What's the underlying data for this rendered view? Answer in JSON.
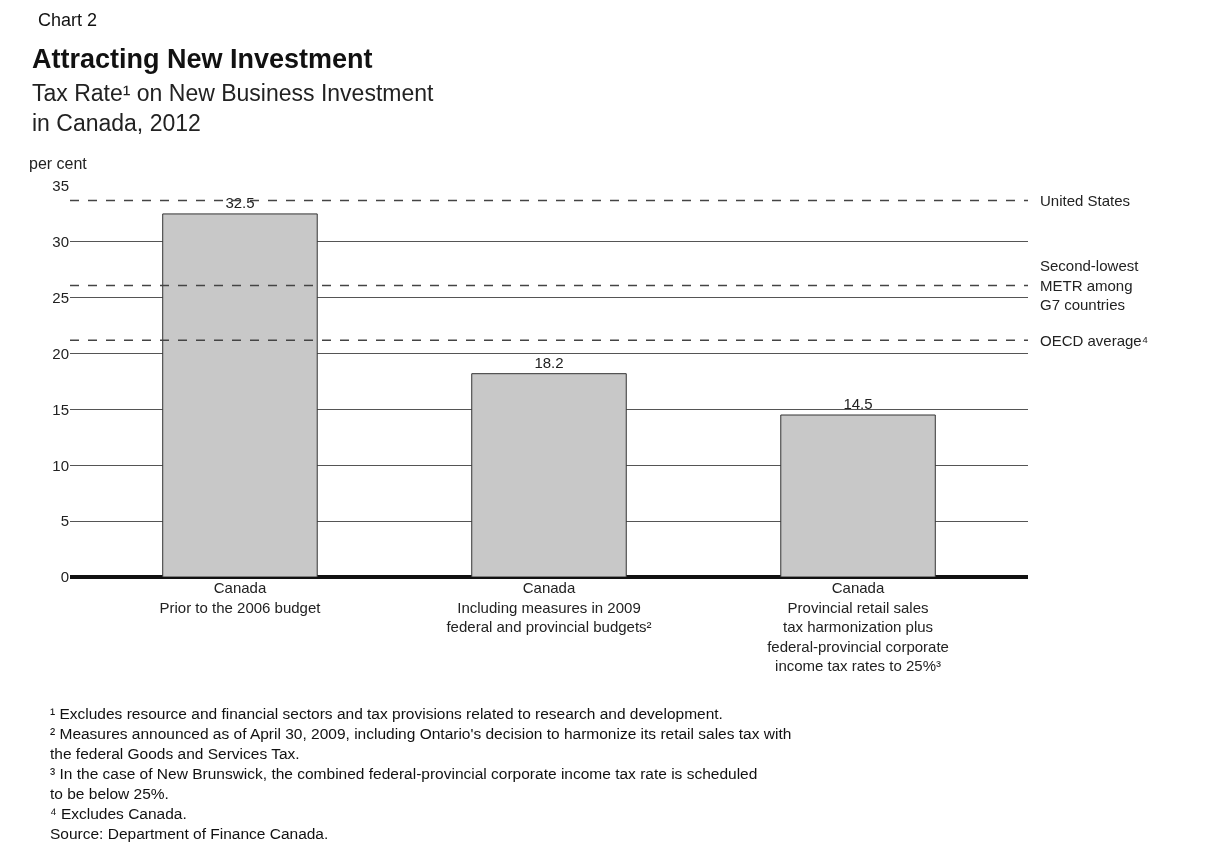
{
  "chart_data": {
    "type": "bar",
    "title": "Attracting New Investment",
    "subtitle": "Tax Rate¹ on New Business Investment\nin Canada, 2012",
    "ylabel": "per cent",
    "categories": [
      "Canada\nPrior to the 2006 budget",
      "Canada\nIncluding measures in 2009\nfederal and provincial budgets²",
      "Canada\nProvincial retail sales\ntax harmonization plus\nfederal-provincial corporate\nincome tax rates to 25%³"
    ],
    "values": [
      32.5,
      18.2,
      14.5
    ],
    "color": "#c8c8c8",
    "data_labels": true,
    "ylim": [
      0,
      35
    ],
    "yticks": [
      0,
      5,
      10,
      15,
      20,
      25,
      30,
      35
    ],
    "grid": "y",
    "legend": false,
    "ref_lines": [
      {
        "axis": "y",
        "value": 33.7,
        "label": "United States",
        "color": "#444444",
        "line_style": "dashed"
      },
      {
        "axis": "y",
        "value": 26.1,
        "label": "Second-lowest\nMETR among\nG7 countries",
        "color": "#444444",
        "line_style": "dashed"
      },
      {
        "axis": "y",
        "value": 21.2,
        "label": "OECD average⁴",
        "color": "#444444",
        "line_style": "dashed"
      }
    ],
    "annotations": [
      "Chart 2",
      "¹ Excludes resource and financial sectors and tax provisions related to research and development.",
      "² Measures announced as of April 30, 2009, including Ontario's decision to harmonize its retail sales tax with\nthe federal Goods and Services Tax.",
      "³ In the case of New Brunswick, the combined federal-provincial corporate income tax rate is scheduled\nto be below 25%.",
      "⁴ Excludes Canada.",
      "Source: Department of Finance Canada."
    ]
  }
}
